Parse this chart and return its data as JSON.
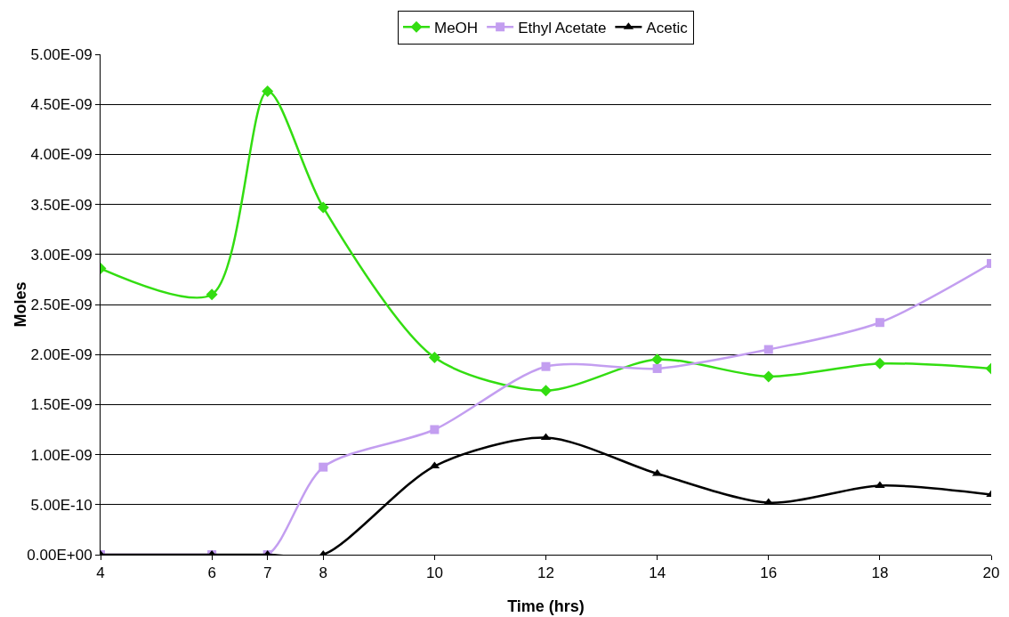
{
  "chart_data": {
    "type": "line",
    "xlabel": "Time (hrs)",
    "ylabel": "Moles",
    "x": [
      4,
      6,
      7,
      8,
      10,
      12,
      14,
      16,
      18,
      20
    ],
    "series": [
      {
        "name": "MeOH",
        "color": "#33dd11",
        "marker": "diamond",
        "values": [
          2.86e-09,
          2.6e-09,
          4.63e-09,
          3.47e-09,
          1.97e-09,
          1.64e-09,
          1.95e-09,
          1.78e-09,
          1.91e-09,
          1.86e-09
        ]
      },
      {
        "name": "Ethyl Acetate",
        "color": "#c39ef0",
        "marker": "square",
        "values": [
          0,
          0,
          0,
          8.75e-10,
          1.25e-09,
          1.88e-09,
          1.86e-09,
          2.05e-09,
          2.32e-09,
          2.91e-09
        ]
      },
      {
        "name": "Acetic",
        "color": "#000000",
        "marker": "triangle",
        "values": [
          0,
          0,
          0,
          0,
          8.85e-10,
          1.17e-09,
          8.1e-10,
          5.2e-10,
          6.9e-10,
          6e-10
        ]
      }
    ],
    "xlim": [
      4,
      20
    ],
    "xticks": [
      4,
      6,
      7,
      8,
      10,
      12,
      14,
      16,
      18,
      20
    ],
    "ylim": [
      0,
      5e-09
    ],
    "yticks": [
      {
        "value": 0,
        "label": "0.00E+00"
      },
      {
        "value": 5e-10,
        "label": "5.00E-10"
      },
      {
        "value": 1e-09,
        "label": "1.00E-09"
      },
      {
        "value": 1.5e-09,
        "label": "1.50E-09"
      },
      {
        "value": 2e-09,
        "label": "2.00E-09"
      },
      {
        "value": 2.5e-09,
        "label": "2.50E-09"
      },
      {
        "value": 3e-09,
        "label": "3.00E-09"
      },
      {
        "value": 3.5e-09,
        "label": "3.50E-09"
      },
      {
        "value": 4e-09,
        "label": "4.00E-09"
      },
      {
        "value": 4.5e-09,
        "label": "4.50E-09"
      },
      {
        "value": 5e-09,
        "label": "5.00E-09"
      }
    ],
    "grid": "y",
    "legend": "top",
    "line_style": "solid"
  }
}
